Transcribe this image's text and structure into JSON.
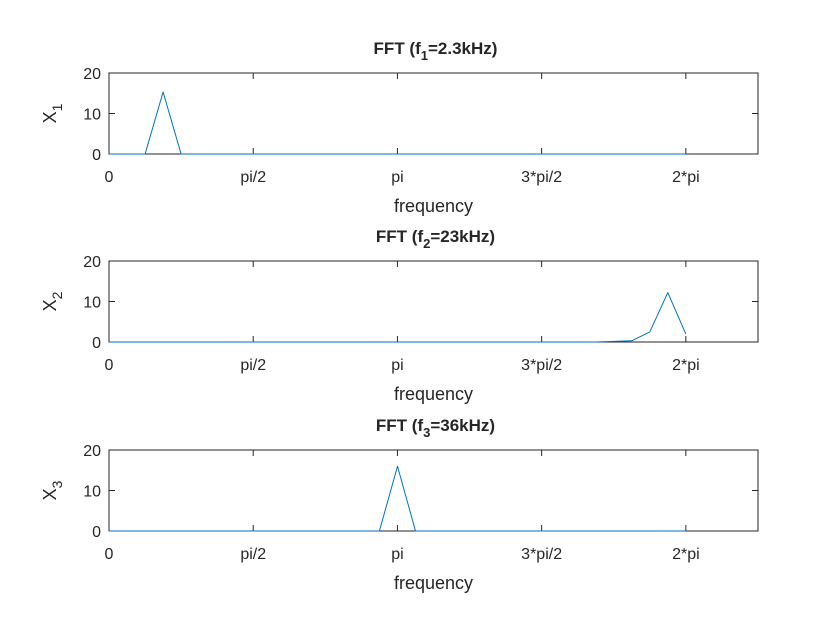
{
  "chart_data": [
    {
      "type": "line",
      "title": {
        "main": "FFT (f",
        "sub": "1",
        "rest": "=2.3kHz)"
      },
      "ylabel": {
        "main": "X",
        "sub": "1"
      },
      "xlabel": "frequency",
      "xticks": [
        {
          "value": 0,
          "label": "0"
        },
        {
          "value": 1.5708,
          "label": "pi/2"
        },
        {
          "value": 3.1416,
          "label": "pi"
        },
        {
          "value": 4.7124,
          "label": "3*pi/2"
        },
        {
          "value": 6.2832,
          "label": "2*pi"
        }
      ],
      "yticks": [
        0,
        10,
        20
      ],
      "xlim": [
        0,
        7.069
      ],
      "ylim": [
        0,
        20
      ],
      "color": "#0072BD",
      "x": [
        0,
        0.393,
        0.589,
        0.785,
        6.283
      ],
      "y": [
        0,
        0,
        15.3,
        0,
        0
      ]
    },
    {
      "type": "line",
      "title": {
        "main": "FFT (f",
        "sub": "2",
        "rest": "=23kHz)"
      },
      "ylabel": {
        "main": "X",
        "sub": "2"
      },
      "xlabel": "frequency",
      "xticks": [
        {
          "value": 0,
          "label": "0"
        },
        {
          "value": 1.5708,
          "label": "pi/2"
        },
        {
          "value": 3.1416,
          "label": "pi"
        },
        {
          "value": 4.7124,
          "label": "3*pi/2"
        },
        {
          "value": 6.2832,
          "label": "2*pi"
        }
      ],
      "yticks": [
        0,
        10,
        20
      ],
      "xlim": [
        0,
        7.069
      ],
      "ylim": [
        0,
        20
      ],
      "color": "#0072BD",
      "x": [
        0,
        5.301,
        5.694,
        5.89,
        6.087,
        6.283
      ],
      "y": [
        0,
        0,
        0.3,
        2.5,
        12.2,
        2.0
      ]
    },
    {
      "type": "line",
      "title": {
        "main": "FFT (f",
        "sub": "3",
        "rest": "=36kHz)"
      },
      "ylabel": {
        "main": "X",
        "sub": "3"
      },
      "xlabel": "frequency",
      "xticks": [
        {
          "value": 0,
          "label": "0"
        },
        {
          "value": 1.5708,
          "label": "pi/2"
        },
        {
          "value": 3.1416,
          "label": "pi"
        },
        {
          "value": 4.7124,
          "label": "3*pi/2"
        },
        {
          "value": 6.2832,
          "label": "2*pi"
        }
      ],
      "yticks": [
        0,
        10,
        20
      ],
      "xlim": [
        0,
        7.069
      ],
      "ylim": [
        0,
        20
      ],
      "color": "#0072BD",
      "x": [
        0,
        2.945,
        3.142,
        3.338,
        6.283
      ],
      "y": [
        0,
        0,
        16.0,
        0,
        0
      ]
    }
  ]
}
